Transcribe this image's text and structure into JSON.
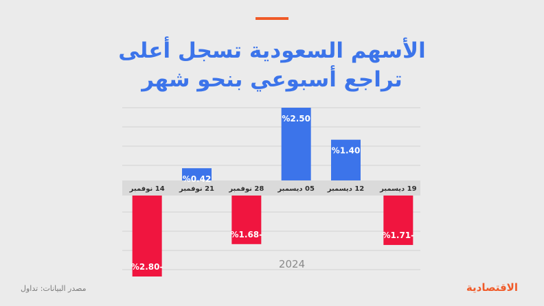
{
  "header": {
    "title_line1": "الأسهم السعودية تسجل أعلى",
    "title_line2": "تراجع أسبوعي بنحو شهر"
  },
  "chart_data": {
    "type": "bar",
    "categories": [
      "14 نوفمبر",
      "21 نوفمبر",
      "28 نوفمبر",
      "05 ديسمبر",
      "12 ديسمبر",
      "19 ديسمبر"
    ],
    "values": [
      -2.8,
      0.42,
      -1.68,
      2.5,
      1.4,
      -1.71
    ],
    "value_labels": [
      "%2.80-",
      "%0.42",
      "%1.68-",
      "%2.50",
      "%1.40",
      "%1.71-"
    ],
    "xlabel": "2024",
    "ylim": [
      -3,
      3
    ],
    "grid": true,
    "colors": {
      "positive": "#3c74ea",
      "negative": "#f0153f"
    }
  },
  "footer": {
    "source": "مصدر البيانات: تداول",
    "logo": "الاقتصادية"
  },
  "colors": {
    "accent": "#f05a28",
    "title": "#3c74ea",
    "background": "#ebebeb"
  }
}
